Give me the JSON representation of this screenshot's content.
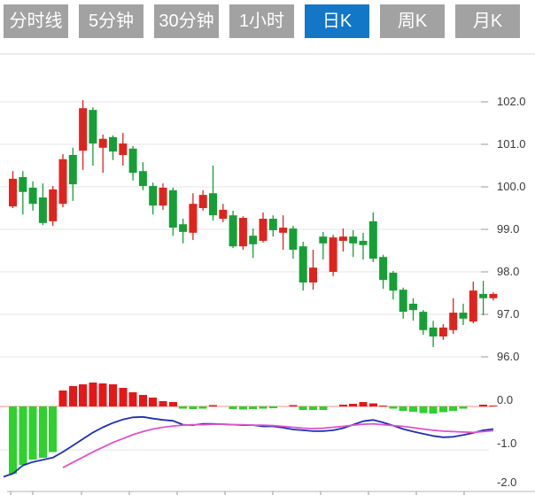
{
  "tab_bar": {
    "items": [
      {
        "label": "分时线",
        "active": false
      },
      {
        "label": "5分钟",
        "active": false
      },
      {
        "label": "30分钟",
        "active": false
      },
      {
        "label": "1小时",
        "active": false
      },
      {
        "label": "日K",
        "active": true
      },
      {
        "label": "周K",
        "active": false
      },
      {
        "label": "月K",
        "active": false
      }
    ]
  },
  "colors": {
    "tab_bg": "#a2a2a2",
    "tab_active_bg": "#1377c8",
    "tab_text": "#ffffff",
    "candle_up": "#df241f",
    "candle_down": "#169f36",
    "hist_up": "#e71717",
    "hist_down": "#2ed12e",
    "dif_line": "#1e2fb4",
    "dea_line": "#df52cc",
    "grid": "#e6e6e6",
    "zero_line": "#f2928e",
    "divider": "#d9d9d9",
    "axis": "#b5b5b5",
    "tick": "#999999",
    "label": "#3a3a3a"
  },
  "chart_data": {
    "type": "candlestick",
    "title": "",
    "panels": [
      "price",
      "macd"
    ],
    "interval_selected": "日K",
    "grid": true,
    "price_axis": {
      "side": "right",
      "range": [
        95.8,
        103.0
      ],
      "ticks": [
        {
          "price": 102,
          "label": "102.0"
        },
        {
          "price": 101,
          "label": "101.0"
        },
        {
          "price": 100,
          "label": "100.0"
        },
        {
          "price": 99,
          "label": "99.0"
        },
        {
          "price": 98,
          "label": "98.0"
        },
        {
          "price": 97,
          "label": "97.0"
        },
        {
          "price": 96,
          "label": "96.0"
        }
      ]
    },
    "macd_axis": {
      "side": "right",
      "range": [
        -2.0,
        0.6
      ],
      "ticks": [
        {
          "value": 0,
          "label": "0.0"
        },
        {
          "value": -1,
          "label": "-1.0"
        },
        {
          "value": -2,
          "label": "-2.0"
        }
      ]
    },
    "up_means": "close >= open (red, Chinese convention)",
    "candles_ohlc": [
      [
        99.54,
        100.37,
        99.5,
        100.19
      ],
      [
        100.23,
        100.37,
        99.35,
        99.88
      ],
      [
        99.98,
        100.13,
        99.44,
        99.6
      ],
      [
        99.75,
        100.08,
        99.1,
        99.15
      ],
      [
        99.19,
        100.02,
        99.08,
        99.94
      ],
      [
        99.6,
        100.77,
        99.52,
        100.65
      ],
      [
        100.75,
        100.92,
        99.67,
        100.06
      ],
      [
        100.85,
        102.04,
        100.4,
        101.85
      ],
      [
        101.81,
        101.87,
        100.5,
        101.02
      ],
      [
        100.92,
        101.23,
        100.33,
        101.13
      ],
      [
        101.17,
        101.21,
        100.63,
        100.83
      ],
      [
        100.75,
        101.27,
        100.5,
        101.02
      ],
      [
        100.9,
        100.96,
        100.15,
        100.33
      ],
      [
        100.37,
        100.58,
        99.92,
        100.02
      ],
      [
        100.02,
        100.1,
        99.35,
        99.56
      ],
      [
        99.56,
        100.08,
        99.46,
        99.98
      ],
      [
        99.92,
        99.98,
        98.85,
        99.04
      ],
      [
        99.12,
        99.25,
        98.67,
        98.94
      ],
      [
        98.92,
        99.85,
        98.75,
        99.6
      ],
      [
        99.5,
        99.92,
        99.44,
        99.81
      ],
      [
        99.85,
        100.5,
        99.21,
        99.33
      ],
      [
        99.25,
        99.6,
        99.17,
        99.46
      ],
      [
        99.33,
        99.44,
        98.56,
        98.6
      ],
      [
        98.6,
        99.31,
        98.52,
        99.27
      ],
      [
        98.85,
        99.02,
        98.33,
        98.65
      ],
      [
        98.73,
        99.4,
        98.69,
        99.25
      ],
      [
        99.25,
        99.33,
        98.83,
        98.98
      ],
      [
        98.92,
        99.33,
        98.52,
        99.04
      ],
      [
        99.02,
        99.08,
        98.31,
        98.52
      ],
      [
        98.6,
        98.71,
        97.56,
        97.75
      ],
      [
        97.75,
        98.52,
        97.58,
        98.1
      ],
      [
        98.83,
        98.94,
        98.29,
        98.67
      ],
      [
        98.0,
        98.87,
        97.9,
        98.81
      ],
      [
        98.73,
        99.02,
        98.48,
        98.83
      ],
      [
        98.83,
        98.98,
        98.35,
        98.67
      ],
      [
        98.73,
        98.92,
        98.29,
        98.63
      ],
      [
        99.19,
        99.4,
        98.23,
        98.31
      ],
      [
        98.35,
        98.4,
        97.6,
        97.81
      ],
      [
        97.98,
        98.02,
        97.35,
        97.56
      ],
      [
        97.58,
        97.63,
        96.9,
        97.06
      ],
      [
        97.25,
        97.38,
        96.85,
        97.1
      ],
      [
        97.06,
        97.1,
        96.52,
        96.63
      ],
      [
        96.69,
        96.85,
        96.23,
        96.48
      ],
      [
        96.48,
        96.77,
        96.4,
        96.69
      ],
      [
        96.63,
        97.38,
        96.54,
        97.04
      ],
      [
        97.04,
        97.25,
        96.75,
        96.9
      ],
      [
        96.83,
        97.77,
        96.79,
        97.56
      ],
      [
        97.48,
        97.79,
        96.98,
        97.38
      ],
      [
        97.38,
        97.52,
        97.33,
        97.48
      ]
    ],
    "macd": {
      "hist": [
        -1.55,
        -1.35,
        -1.22,
        -1.18,
        -1.05,
        0.37,
        0.47,
        0.51,
        0.55,
        0.53,
        0.51,
        0.43,
        0.33,
        0.27,
        0.2,
        0.12,
        0.1,
        -0.05,
        -0.06,
        -0.05,
        0.03,
        0,
        -0.06,
        -0.07,
        -0.06,
        -0.05,
        -0.04,
        0,
        0.03,
        -0.08,
        -0.08,
        -0.08,
        0,
        0.04,
        0.06,
        0.1,
        0.07,
        0.02,
        -0.05,
        -0.1,
        -0.12,
        -0.15,
        -0.16,
        -0.13,
        -0.1,
        -0.05,
        0,
        0.04,
        0.02
      ],
      "dif": [
        -1.55,
        -1.36,
        -1.28,
        -1.23,
        -1.18,
        -1.05,
        -0.9,
        -0.75,
        -0.6,
        -0.48,
        -0.38,
        -0.3,
        -0.25,
        -0.24,
        -0.28,
        -0.31,
        -0.33,
        -0.42,
        -0.43,
        -0.4,
        -0.4,
        -0.41,
        -0.42,
        -0.43,
        -0.43,
        -0.46,
        -0.46,
        -0.49,
        -0.53,
        -0.55,
        -0.57,
        -0.57,
        -0.55,
        -0.5,
        -0.42,
        -0.34,
        -0.31,
        -0.37,
        -0.44,
        -0.52,
        -0.58,
        -0.63,
        -0.68,
        -0.71,
        -0.7,
        -0.66,
        -0.61,
        -0.55,
        -0.52
      ],
      "dea": [
        null,
        null,
        null,
        null,
        null,
        -1.41,
        -1.29,
        -1.17,
        -1.05,
        -0.94,
        -0.83,
        -0.74,
        -0.65,
        -0.58,
        -0.52,
        -0.48,
        -0.45,
        -0.43,
        -0.42,
        -0.42,
        -0.41,
        -0.41,
        -0.42,
        -0.42,
        -0.43,
        -0.43,
        -0.44,
        -0.46,
        -0.48,
        -0.5,
        -0.51,
        -0.5,
        -0.48,
        -0.46,
        -0.43,
        -0.41,
        -0.4,
        -0.42,
        -0.44,
        -0.46,
        -0.49,
        -0.52,
        -0.55,
        -0.57,
        -0.58,
        -0.59,
        -0.6,
        -0.58,
        -0.56
      ]
    }
  }
}
